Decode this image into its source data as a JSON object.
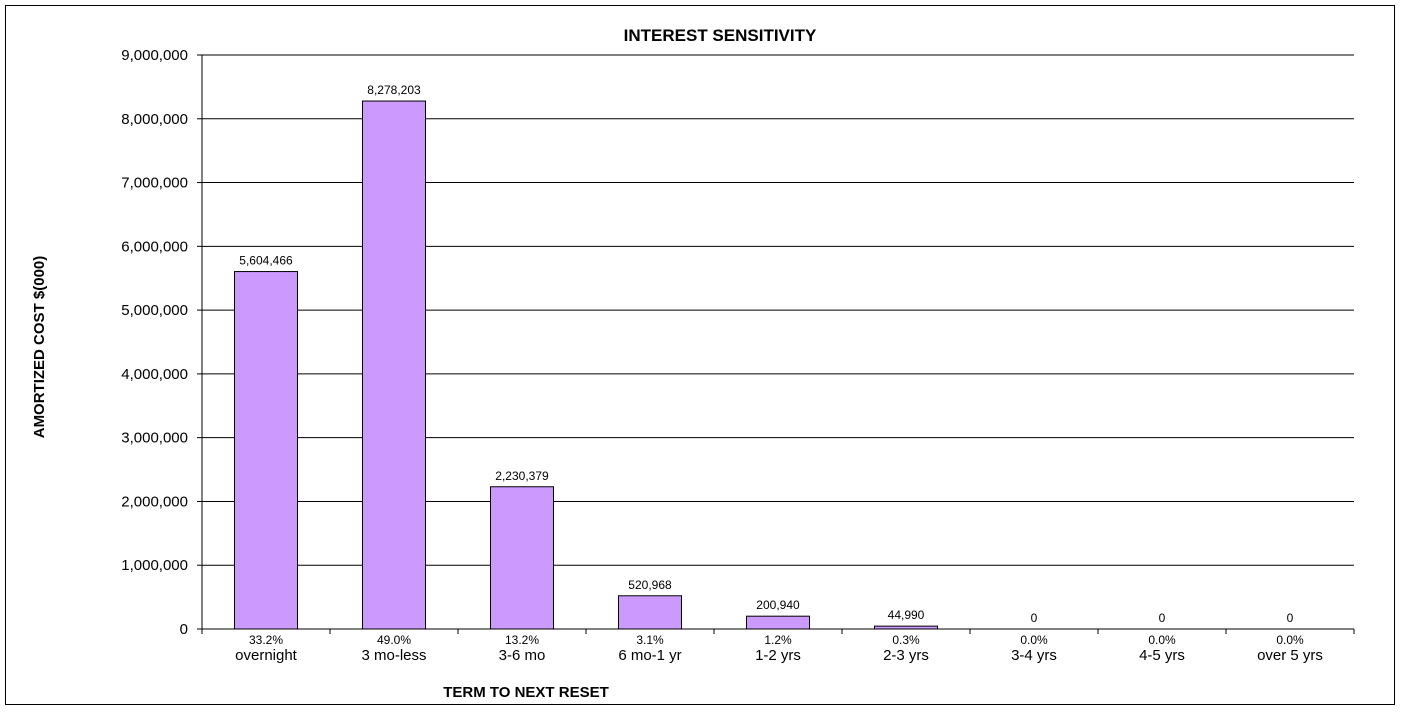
{
  "chart_data": {
    "type": "bar",
    "title": "INTEREST SENSITIVITY",
    "xlabel": "TERM TO NEXT RESET",
    "ylabel": "AMORTIZED COST $(000)",
    "ylim": [
      0,
      9000000
    ],
    "yticks": [
      "0",
      "1,000,000",
      "2,000,000",
      "3,000,000",
      "4,000,000",
      "5,000,000",
      "6,000,000",
      "7,000,000",
      "8,000,000",
      "9,000,000"
    ],
    "grid": true,
    "bar_color": "#cc99ff",
    "categories": [
      "overnight",
      "3 mo-less",
      "3-6 mo",
      "6 mo-1 yr",
      "1-2 yrs",
      "2-3 yrs",
      "3-4 yrs",
      "4-5 yrs",
      "over 5 yrs"
    ],
    "values": [
      5604466,
      8278203,
      2230379,
      520968,
      200940,
      44990,
      0,
      0,
      0
    ],
    "value_labels": [
      "5,604,466",
      "8,278,203",
      "2,230,379",
      "520,968",
      "200,940",
      "44,990",
      "0",
      "0",
      "0"
    ],
    "percent_labels": [
      "33.2%",
      "49.0%",
      "13.2%",
      "3.1%",
      "1.2%",
      "0.3%",
      "0.0%",
      "0.0%",
      "0.0%"
    ]
  }
}
